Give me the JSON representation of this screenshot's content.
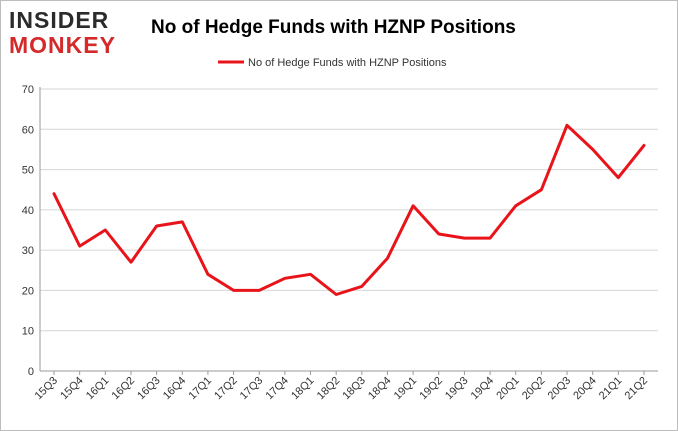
{
  "logo": {
    "line1": "INSIDER",
    "line2": "MONKEY"
  },
  "chart_data": {
    "type": "line",
    "title": "No of Hedge Funds with HZNP Positions",
    "xlabel": "",
    "ylabel": "",
    "categories": [
      "15Q3",
      "15Q4",
      "16Q1",
      "16Q2",
      "16Q3",
      "16Q4",
      "17Q1",
      "17Q2",
      "17Q3",
      "17Q4",
      "18Q1",
      "18Q2",
      "18Q3",
      "18Q4",
      "19Q1",
      "19Q2",
      "19Q3",
      "19Q4",
      "20Q1",
      "20Q2",
      "20Q3",
      "20Q4",
      "21Q1",
      "21Q2"
    ],
    "series": [
      {
        "name": "No of Hedge Funds with HZNP Positions",
        "values": [
          44,
          31,
          35,
          27,
          36,
          37,
          24,
          20,
          20,
          23,
          24,
          19,
          21,
          28,
          41,
          34,
          33,
          33,
          41,
          45,
          61,
          55,
          48,
          56
        ],
        "color": "#e8141a"
      }
    ],
    "ylim": [
      0,
      70
    ],
    "yticks": [
      0,
      10,
      20,
      30,
      40,
      50,
      60,
      70
    ],
    "grid": true,
    "legend_position": "top-center"
  }
}
